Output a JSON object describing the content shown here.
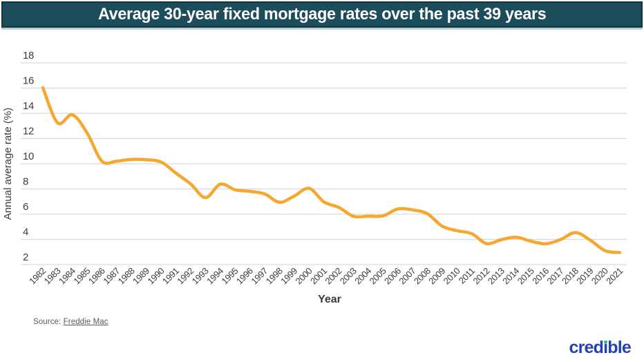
{
  "header": {
    "title": "Average 30-year fixed mortgage rates over the past 39 years",
    "background_color": "#1d4d5a",
    "border_color": "#0d3441",
    "text_color": "#ffffff"
  },
  "chart_data": {
    "type": "line",
    "title": "Average 30-year fixed mortgage rates over the past 39 years",
    "xlabel": "Year",
    "ylabel": "Annual average rate (%)",
    "x": [
      1982,
      1983,
      1984,
      1985,
      1986,
      1987,
      1988,
      1989,
      1990,
      1991,
      1992,
      1993,
      1994,
      1995,
      1996,
      1997,
      1998,
      1999,
      2000,
      2001,
      2002,
      2003,
      2004,
      2005,
      2006,
      2007,
      2008,
      2009,
      2010,
      2011,
      2012,
      2013,
      2014,
      2015,
      2016,
      2017,
      2018,
      2019,
      2020,
      2021
    ],
    "series": [
      {
        "name": "Average 30-year fixed mortgage rate",
        "color": "#f6a72f",
        "values": [
          16.04,
          13.24,
          13.88,
          12.43,
          10.19,
          10.21,
          10.34,
          10.32,
          10.13,
          9.25,
          8.39,
          7.31,
          8.38,
          7.93,
          7.81,
          7.6,
          6.94,
          7.44,
          8.05,
          6.97,
          6.54,
          5.83,
          5.84,
          5.87,
          6.41,
          6.34,
          6.03,
          5.04,
          4.69,
          4.45,
          3.66,
          3.98,
          4.17,
          3.85,
          3.65,
          3.99,
          4.54,
          3.94,
          3.1,
          2.96
        ]
      }
    ],
    "ylim": [
      2,
      18
    ],
    "yticks": [
      2,
      4,
      6,
      8,
      10,
      12,
      14,
      16,
      18
    ],
    "grid": "horizontal",
    "grid_color": "#d9d9d9",
    "tick_text_color": "#3c3c3c",
    "legend": "none"
  },
  "footer": {
    "source_prefix": "Source: ",
    "source_link": "Freddie Mac",
    "logo_text": "credible",
    "logo_color": "#2342b4",
    "logo_dot_color": "#2db673"
  }
}
